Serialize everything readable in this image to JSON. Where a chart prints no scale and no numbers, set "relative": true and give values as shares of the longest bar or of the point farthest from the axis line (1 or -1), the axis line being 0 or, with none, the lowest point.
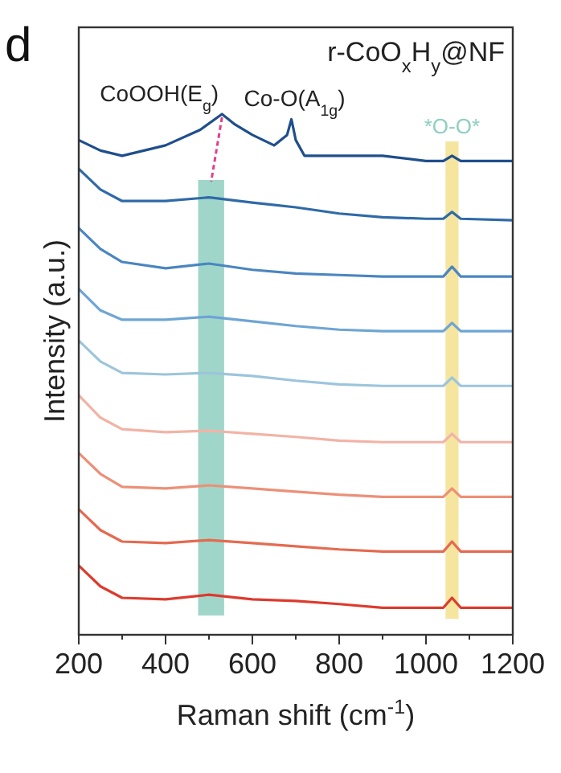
{
  "chart_data": {
    "type": "line",
    "relative": true,
    "xlabel": "Raman shift (cm$^{-1}$)",
    "ylabel": "Intensity (a.u.)",
    "xlim": [
      200,
      1200
    ],
    "xticks": [
      200,
      {
        "value": 300,
        "label": null
      },
      400,
      {
        "value": 500,
        "label": null
      },
      600,
      {
        "value": 700,
        "label": null
      },
      800,
      {
        "value": 900,
        "label": null
      },
      1000,
      {
        "value": 1100,
        "label": null
      },
      1200
    ],
    "x": [
      200,
      250,
      300,
      400,
      500,
      600,
      700,
      800,
      900,
      1000,
      1040,
      1060,
      1080,
      1200
    ],
    "series": [
      {
        "color": "#1f4e8c",
        "x": [
          200,
          250,
          300,
          400,
          480,
          530,
          560,
          600,
          650,
          680,
          690,
          700,
          720,
          800,
          900,
          1000,
          1040,
          1060,
          1080,
          1200
        ],
        "values": [
          0.95,
          0.93,
          0.92,
          0.94,
          0.97,
          1,
          0.98,
          0.96,
          0.94,
          0.96,
          0.99,
          0.95,
          0.92,
          0.92,
          0.92,
          0.91,
          0.91,
          0.92,
          0.91,
          0.91
        ]
      },
      {
        "color": "#2f6aa8",
        "values": [
          0.895,
          0.855,
          0.833,
          0.833,
          0.84,
          0.83,
          0.821,
          0.809,
          0.802,
          0.799,
          0.799,
          0.812,
          0.799,
          0.796
        ]
      },
      {
        "color": "#4a86c0",
        "values": [
          0.781,
          0.741,
          0.716,
          0.704,
          0.713,
          0.701,
          0.694,
          0.691,
          0.688,
          0.688,
          0.688,
          0.707,
          0.688,
          0.688
        ]
      },
      {
        "color": "#6ea5d4",
        "values": [
          0.664,
          0.623,
          0.605,
          0.605,
          0.611,
          0.602,
          0.593,
          0.586,
          0.583,
          0.583,
          0.583,
          0.599,
          0.583,
          0.583
        ]
      },
      {
        "color": "#9cc5dc",
        "values": [
          0.565,
          0.525,
          0.503,
          0.5,
          0.503,
          0.497,
          0.488,
          0.481,
          0.478,
          0.478,
          0.478,
          0.494,
          0.478,
          0.478
        ]
      },
      {
        "color": "#f2b3a6",
        "values": [
          0.46,
          0.417,
          0.395,
          0.389,
          0.392,
          0.386,
          0.38,
          0.373,
          0.37,
          0.37,
          0.37,
          0.386,
          0.37,
          0.37
        ]
      },
      {
        "color": "#ec9078",
        "values": [
          0.349,
          0.309,
          0.284,
          0.281,
          0.287,
          0.281,
          0.275,
          0.269,
          0.265,
          0.265,
          0.265,
          0.281,
          0.265,
          0.265
        ]
      },
      {
        "color": "#e56a50",
        "values": [
          0.241,
          0.201,
          0.179,
          0.176,
          0.182,
          0.176,
          0.17,
          0.164,
          0.16,
          0.16,
          0.16,
          0.179,
          0.16,
          0.16
        ]
      },
      {
        "color": "#dc3b2e",
        "values": [
          0.133,
          0.093,
          0.071,
          0.068,
          0.077,
          0.068,
          0.065,
          0.059,
          0.052,
          0.052,
          0.052,
          0.071,
          0.052,
          0.052
        ]
      }
    ],
    "bands": [
      {
        "axis": "x",
        "from": 475,
        "to": 535,
        "color": "#8fcfc0"
      },
      {
        "axis": "x",
        "from": 1045,
        "to": 1075,
        "color": "#f3e08e",
        "label": "*O-O*"
      }
    ],
    "annotations": [
      "d",
      "r-CoO$_{x}$H$_{y}$@NF",
      {
        "text": "CoOOH(E$_{g}$)",
        "x": 530,
        "y": 1
      },
      {
        "text": "Co-O(A$_{1g}$)",
        "x": 690,
        "y": 0.99
      }
    ],
    "line_style": "solid"
  }
}
